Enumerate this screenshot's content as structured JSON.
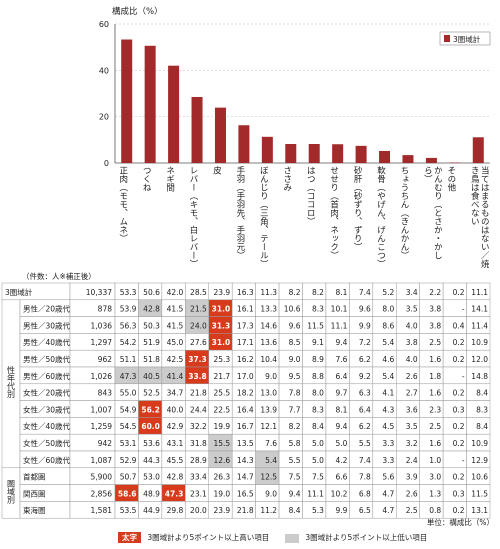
{
  "chart_data": {
    "type": "bar",
    "title": "",
    "ylabel": "構成比（%）",
    "xlabel": "",
    "ylim": [
      0,
      60
    ],
    "yticks": [
      0,
      20,
      40,
      60
    ],
    "grid": true,
    "legend_position": "top-right",
    "series": [
      {
        "name": "3圏域計",
        "color": "#a32a2a",
        "values": [
          53.3,
          50.6,
          42.0,
          28.5,
          23.9,
          16.3,
          11.3,
          8.2,
          8.2,
          8.1,
          7.4,
          5.2,
          3.4,
          2.2,
          0.2,
          11.1
        ]
      }
    ],
    "categories": [
      "正肉（モモ、ムネ）",
      "つくね",
      "ネギ間",
      "レバー（キモ、白レバー）",
      "皮",
      "手羽（手羽先、手羽元）",
      "ぼんじり（三角、テール）",
      "ささみ",
      "はつ（ココロ）",
      "せせり（首肉、ネック）",
      "砂肝（砂ずり、ずり）",
      "軟骨（やげん、げんこつ）",
      "ちょうちん（きんかん）",
      "かんむり（とさか・かしら）",
      "その他",
      "当てはまるものはない／焼き鳥は食べない"
    ],
    "table": {
      "header_note": "（件数：人※補正後）",
      "rows": [
        {
          "group": "",
          "label": "3圏域計",
          "n": "10,337",
          "values": [
            "53.3",
            "50.6",
            "42.0",
            "28.5",
            "23.9",
            "16.3",
            "11.3",
            "8.2",
            "8.2",
            "8.1",
            "7.4",
            "5.2",
            "3.4",
            "2.2",
            "0.2",
            "11.1"
          ]
        },
        {
          "group": "性年代別",
          "label": "男性／20歳代",
          "n": "878",
          "values": [
            "53.9",
            "42.8",
            "41.5",
            "21.5",
            "31.0",
            "16.1",
            "13.3",
            "10.6",
            "8.3",
            "10.1",
            "9.6",
            "8.0",
            "3.5",
            "3.8",
            "-",
            "14.1"
          ]
        },
        {
          "group": "性年代別",
          "label": "男性／30歳代",
          "n": "1,036",
          "values": [
            "56.3",
            "50.3",
            "41.5",
            "24.0",
            "31.3",
            "17.3",
            "14.6",
            "9.6",
            "11.5",
            "11.1",
            "9.9",
            "8.6",
            "4.0",
            "3.8",
            "0.4",
            "11.4"
          ]
        },
        {
          "group": "性年代別",
          "label": "男性／40歳代",
          "n": "1,297",
          "values": [
            "54.2",
            "51.9",
            "45.0",
            "27.6",
            "31.0",
            "17.1",
            "13.6",
            "8.5",
            "9.1",
            "9.4",
            "7.2",
            "5.4",
            "3.8",
            "2.5",
            "0.2",
            "10.9"
          ]
        },
        {
          "group": "性年代別",
          "label": "男性／50歳代",
          "n": "962",
          "values": [
            "51.1",
            "51.8",
            "42.5",
            "37.3",
            "25.3",
            "16.2",
            "10.4",
            "9.0",
            "8.9",
            "7.6",
            "6.2",
            "4.6",
            "4.0",
            "1.6",
            "0.2",
            "12.0"
          ]
        },
        {
          "group": "性年代別",
          "label": "男性／60歳代",
          "n": "1,026",
          "values": [
            "47.3",
            "40.5",
            "41.4",
            "33.8",
            "21.7",
            "17.0",
            "9.0",
            "9.5",
            "8.8",
            "6.4",
            "9.2",
            "5.4",
            "2.6",
            "1.8",
            "-",
            "14.8"
          ]
        },
        {
          "group": "性年代別",
          "label": "女性／20歳代",
          "n": "843",
          "values": [
            "55.0",
            "52.5",
            "34.7",
            "21.8",
            "25.5",
            "18.2",
            "13.0",
            "7.8",
            "8.0",
            "9.7",
            "6.3",
            "4.1",
            "2.7",
            "1.6",
            "0.2",
            "8.4"
          ]
        },
        {
          "group": "性年代別",
          "label": "女性／30歳代",
          "n": "1,007",
          "values": [
            "54.9",
            "56.2",
            "40.0",
            "24.4",
            "22.5",
            "16.4",
            "13.9",
            "7.7",
            "8.3",
            "8.1",
            "6.4",
            "4.3",
            "3.6",
            "2.3",
            "0.3",
            "8.3"
          ]
        },
        {
          "group": "性年代別",
          "label": "女性／40歳代",
          "n": "1,259",
          "values": [
            "54.5",
            "60.0",
            "42.9",
            "32.2",
            "19.9",
            "16.7",
            "12.1",
            "8.2",
            "8.4",
            "9.4",
            "6.2",
            "4.5",
            "3.5",
            "2.5",
            "0.2",
            "8.4"
          ]
        },
        {
          "group": "性年代別",
          "label": "女性／50歳代",
          "n": "942",
          "values": [
            "53.1",
            "53.6",
            "43.1",
            "31.8",
            "15.5",
            "13.5",
            "7.6",
            "5.8",
            "5.0",
            "5.0",
            "5.5",
            "3.3",
            "3.2",
            "1.6",
            "0.2",
            "10.9"
          ]
        },
        {
          "group": "性年代別",
          "label": "女性／60歳代",
          "n": "1,087",
          "values": [
            "52.9",
            "44.3",
            "45.5",
            "28.9",
            "12.6",
            "14.3",
            "5.4",
            "5.5",
            "5.0",
            "4.2",
            "7.4",
            "3.3",
            "2.4",
            "1.0",
            "-",
            "12.9"
          ]
        },
        {
          "group": "圏域別",
          "label": "首都圏",
          "n": "5,900",
          "values": [
            "50.7",
            "53.0",
            "42.8",
            "33.4",
            "26.3",
            "14.7",
            "12.5",
            "7.5",
            "7.5",
            "6.6",
            "7.8",
            "5.6",
            "3.9",
            "3.0",
            "0.2",
            "10.6"
          ]
        },
        {
          "group": "圏域別",
          "label": "関西圏",
          "n": "2,856",
          "values": [
            "58.6",
            "48.9",
            "47.3",
            "23.1",
            "19.0",
            "16.5",
            "9.0",
            "9.4",
            "11.1",
            "10.2",
            "6.8",
            "4.7",
            "2.6",
            "1.3",
            "0.3",
            "11.5"
          ]
        },
        {
          "group": "圏域別",
          "label": "東海圏",
          "n": "1,581",
          "values": [
            "53.5",
            "44.9",
            "29.8",
            "20.0",
            "23.9",
            "21.8",
            "11.2",
            "8.4",
            "5.3",
            "9.9",
            "6.5",
            "4.7",
            "2.5",
            "0.8",
            "0.2",
            "13.1"
          ]
        }
      ],
      "highlight_high": [
        [
          1,
          4
        ],
        [
          2,
          4
        ],
        [
          3,
          4
        ],
        [
          4,
          3
        ],
        [
          5,
          3
        ],
        [
          7,
          1
        ],
        [
          8,
          1
        ],
        [
          12,
          0
        ],
        [
          12,
          2
        ],
        [
          14,
          5
        ]
      ],
      "highlight_low": [
        [
          1,
          1
        ],
        [
          1,
          3
        ],
        [
          2,
          3
        ],
        [
          5,
          0
        ],
        [
          5,
          1
        ],
        [
          5,
          2
        ],
        [
          9,
          4
        ],
        [
          10,
          4
        ],
        [
          10,
          6
        ],
        [
          11,
          6
        ],
        [
          14,
          2
        ]
      ]
    }
  },
  "legend": {
    "swatch_color": "#a32a2a",
    "label": "3圏域計"
  },
  "footer": {
    "unit": "単位：構成比（%）",
    "high_tag": "太字",
    "high_text": "3圏域計より5ポイント以上高い項目",
    "low_text": "3圏域計より5ポイント以上低い項目"
  },
  "colors": {
    "bar": "#a32a2a",
    "high_bg": "#d83a1c",
    "low_bg": "#cccccc"
  }
}
